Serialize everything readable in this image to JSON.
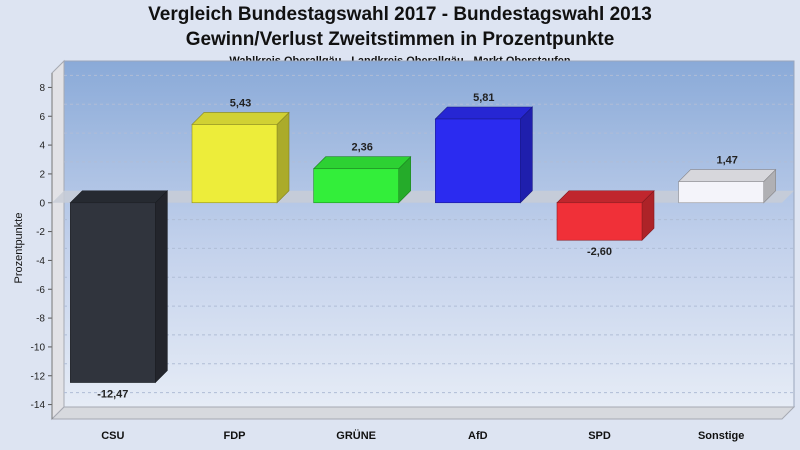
{
  "header": {
    "title": "Vergleich Bundestagswahl 2017 - Bundestagswahl 2013",
    "subtitle": "Gewinn/Verlust Zweitstimmen in Prozentpunkte",
    "subsubtitle": "Wahlkreis Oberallgäu - Landkreis Oberallgäu - Markt Oberstaufen"
  },
  "chart_data": {
    "type": "bar",
    "title": "Vergleich Bundestagswahl 2017 - Bundestagswahl 2013",
    "subtitle": "Gewinn/Verlust Zweitstimmen in Prozentpunkte",
    "ylabel": "Prozentpunkte",
    "xlabel": "",
    "ylim": [
      -15,
      9
    ],
    "yticks": [
      -14,
      -12,
      -10,
      -8,
      -6,
      -4,
      -2,
      0,
      2,
      4,
      6,
      8
    ],
    "grid": true,
    "categories": [
      "CSU",
      "FDP",
      "GRÜNE",
      "AfD",
      "SPD",
      "Sonstige"
    ],
    "values": [
      -12.47,
      5.43,
      2.36,
      5.81,
      -2.6,
      1.47
    ],
    "value_labels": [
      "-12,47",
      "5,43",
      "2,36",
      "5,81",
      "-2,60",
      "1,47"
    ],
    "colors": [
      "#30343d",
      "#eded3a",
      "#33ee3a",
      "#2b2bf0",
      "#f03038",
      "#f4f4fa"
    ]
  }
}
